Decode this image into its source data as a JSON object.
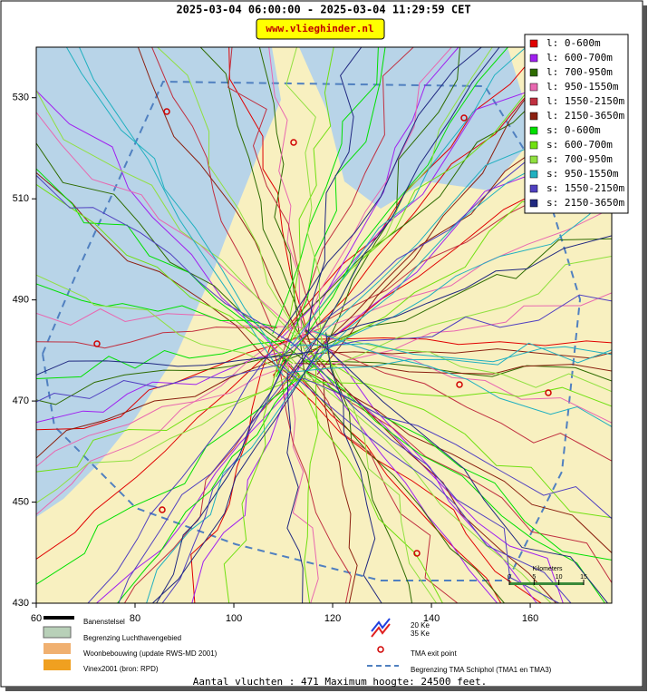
{
  "header": {
    "title": "2025-03-04 06:00:00 - 2025-03-04 11:29:59 CET",
    "badge": "www.vlieghinder.nl"
  },
  "map": {
    "xlim": [
      60,
      176.5
    ],
    "ylim": [
      430,
      540
    ],
    "xticks": [
      60,
      80,
      100,
      120,
      140,
      160
    ],
    "yticks": [
      430,
      450,
      470,
      490,
      510,
      530
    ]
  },
  "legend": {
    "items": [
      {
        "name": "l: 0-600m",
        "color": "#e00000"
      },
      {
        "name": "l: 600-700m",
        "color": "#a020f0"
      },
      {
        "name": "l: 700-950m",
        "color": "#2e6b00"
      },
      {
        "name": "l: 950-1550m",
        "color": "#e868b0"
      },
      {
        "name": "l: 1550-2150m",
        "color": "#c03040"
      },
      {
        "name": "l: 2150-3650m",
        "color": "#8b2010"
      },
      {
        "name": "s: 0-600m",
        "color": "#00e000"
      },
      {
        "name": "s: 600-700m",
        "color": "#70e010"
      },
      {
        "name": "s: 700-950m",
        "color": "#90e040"
      },
      {
        "name": "s: 950-1550m",
        "color": "#20b0c0"
      },
      {
        "name": "s: 1550-2150m",
        "color": "#5040c0"
      },
      {
        "name": "s: 2150-3650m",
        "color": "#202880"
      }
    ]
  },
  "scale_bar": {
    "label": "Kilometers",
    "ticks": [
      0,
      5,
      10,
      15
    ]
  },
  "map_legend": {
    "runways": "Banenstelsel",
    "airport_boundary": "Begrenzing Luchthavengebied",
    "housing": "Woonbebouwing (update RWS-MD 2001)",
    "vinex": "Vinex2001 (bron: RPD)",
    "ke20": "20 Ke",
    "ke35": "35 Ke",
    "exit_point": "TMA exit point",
    "tma_boundary": "Begrenzing TMA Schiphol  (TMA1 en TMA3)"
  },
  "footer": "Aantal vluchten : 471 Maximum hoogte: 24500 feet."
}
